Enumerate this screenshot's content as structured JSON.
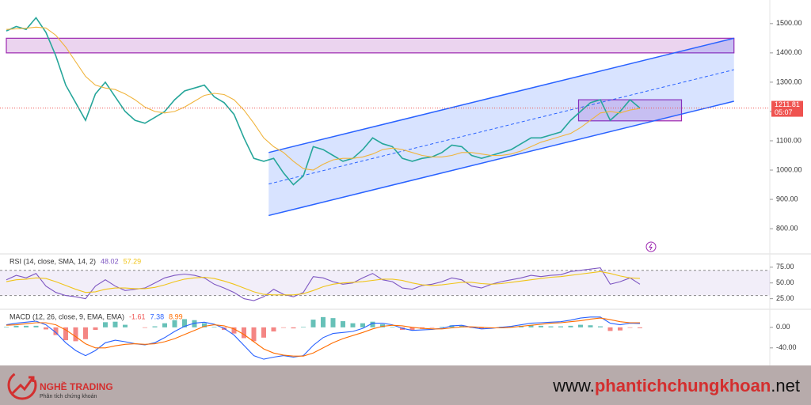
{
  "chart_data": [
    {
      "type": "line",
      "ylim": [
        722,
        1567
      ],
      "yticks": [
        {
          "value": 800,
          "label": "800.00"
        },
        {
          "value": 900,
          "label": "900.00"
        },
        {
          "value": 1000,
          "label": "1000.00"
        },
        {
          "value": 1100,
          "label": "1100.00"
        },
        {
          "value": 1200,
          "label": "1200.00"
        },
        {
          "value": 1300,
          "label": "1300.00"
        },
        {
          "value": 1400,
          "label": "1400.00"
        },
        {
          "value": 1500,
          "label": "1500.00"
        }
      ],
      "series": [
        {
          "color": "#26a69a",
          "values": [
            1475,
            1490,
            1480,
            1520,
            1470,
            1390,
            1290,
            1230,
            1170,
            1260,
            1300,
            1250,
            1200,
            1170,
            1160,
            1180,
            1200,
            1240,
            1270,
            1280,
            1290,
            1250,
            1230,
            1190,
            1110,
            1040,
            1030,
            1040,
            990,
            950,
            980,
            1080,
            1070,
            1050,
            1030,
            1040,
            1070,
            1110,
            1090,
            1080,
            1040,
            1030,
            1040,
            1045,
            1060,
            1085,
            1080,
            1050,
            1040,
            1050,
            1060,
            1070,
            1090,
            1110,
            1110,
            1120,
            1130,
            1170,
            1200,
            1230,
            1240,
            1170,
            1200,
            1240,
            1211.81
          ]
        },
        {
          "color": "#f0b43c",
          "values": [
            1480,
            1482,
            1484,
            1488,
            1485,
            1460,
            1420,
            1370,
            1320,
            1290,
            1280,
            1275,
            1260,
            1240,
            1215,
            1200,
            1195,
            1200,
            1215,
            1235,
            1255,
            1262,
            1258,
            1240,
            1205,
            1160,
            1110,
            1080,
            1060,
            1030,
            1005,
            1000,
            1020,
            1035,
            1040,
            1040,
            1045,
            1055,
            1070,
            1075,
            1070,
            1060,
            1050,
            1045,
            1045,
            1050,
            1060,
            1060,
            1055,
            1050,
            1050,
            1055,
            1065,
            1080,
            1095,
            1105,
            1115,
            1125,
            1145,
            1170,
            1195,
            1200,
            1195,
            1205,
            1210
          ]
        }
      ],
      "countdown": "05:07",
      "channel": {
        "x": [
          26.5,
          73.5
        ],
        "lower": [
          845,
          1235
        ],
        "upper": [
          1060,
          1450
        ]
      },
      "zones": [
        {
          "x": [
            0,
            73.5
          ],
          "y": [
            1400,
            1450
          ]
        },
        {
          "x": [
            57.8,
            68.2
          ],
          "y": [
            1168,
            1240
          ]
        }
      ]
    },
    {
      "type": "line",
      "title": "RSI (14, close, SMA, 14, 2)",
      "ylim": [
        12,
        91
      ],
      "band": [
        30,
        70
      ],
      "yticks": [
        {
          "value": 25,
          "label": "25.00"
        },
        {
          "value": 50,
          "label": "50.00"
        },
        {
          "value": 75,
          "label": "75.00"
        }
      ],
      "series": [
        {
          "color": "#7e57c2",
          "values": [
            55,
            62,
            58,
            65,
            45,
            35,
            30,
            28,
            25,
            45,
            55,
            45,
            38,
            40,
            42,
            50,
            58,
            62,
            64,
            62,
            58,
            48,
            42,
            35,
            25,
            22,
            28,
            40,
            32,
            28,
            35,
            60,
            58,
            52,
            48,
            50,
            58,
            65,
            55,
            52,
            42,
            40,
            46,
            48,
            52,
            58,
            55,
            45,
            42,
            48,
            52,
            55,
            58,
            62,
            60,
            62,
            63,
            68,
            70,
            72,
            74,
            48,
            52,
            58,
            48.02
          ]
        },
        {
          "color": "#f0c419",
          "values": [
            52,
            55,
            56,
            58,
            57,
            52,
            46,
            40,
            35,
            36,
            40,
            42,
            42,
            41,
            41,
            43,
            47,
            52,
            56,
            58,
            59,
            57,
            53,
            48,
            42,
            36,
            32,
            31,
            31,
            31,
            33,
            38,
            44,
            48,
            50,
            51,
            52,
            54,
            56,
            56,
            54,
            50,
            47,
            46,
            47,
            49,
            51,
            51,
            49,
            48,
            49,
            51,
            53,
            55,
            57,
            59,
            60,
            62,
            64,
            66,
            68,
            65,
            61,
            58,
            57.29
          ]
        }
      ]
    },
    {
      "type": "macd",
      "title": "MACD (12, 26, close, 9, EMA, EMA)",
      "ylim": [
        -68,
        29
      ],
      "yticks": [
        {
          "value": -40,
          "label": "-40.00"
        },
        {
          "value": 0,
          "label": "0.00"
        }
      ],
      "histogram": {
        "up_color": "#26a69a",
        "down_color": "#ef5350",
        "values": [
          1,
          3,
          3,
          3,
          -4,
          -15,
          -25,
          -27,
          -23,
          -5,
          10,
          11,
          5,
          0,
          -1,
          2,
          8,
          14,
          16,
          14,
          8,
          1,
          -5,
          -12,
          -21,
          -27,
          -20,
          -8,
          -1,
          -2,
          1,
          15,
          20,
          18,
          12,
          8,
          8,
          11,
          6,
          1,
          -5,
          -6,
          -3,
          -1,
          1,
          4,
          3,
          -1,
          -3,
          -1,
          1,
          2,
          3,
          4,
          3,
          2,
          2,
          3,
          5,
          4,
          2,
          -7,
          -6,
          -1,
          -1.61
        ]
      },
      "series": [
        {
          "color": "#2962ff",
          "values": [
            5,
            8,
            10,
            12,
            5,
            -10,
            -30,
            -45,
            -55,
            -45,
            -30,
            -25,
            -28,
            -32,
            -34,
            -30,
            -20,
            -8,
            2,
            8,
            10,
            6,
            -2,
            -15,
            -35,
            -55,
            -62,
            -58,
            -55,
            -58,
            -55,
            -35,
            -20,
            -12,
            -10,
            -8,
            -2,
            8,
            8,
            5,
            -2,
            -6,
            -5,
            -4,
            -2,
            3,
            4,
            0,
            -3,
            -2,
            0,
            2,
            5,
            8,
            9,
            10,
            11,
            14,
            18,
            20,
            20,
            8,
            5,
            8,
            7.38
          ]
        },
        {
          "color": "#ff6d00",
          "values": [
            4,
            5,
            7,
            9,
            9,
            5,
            -5,
            -18,
            -32,
            -40,
            -40,
            -36,
            -33,
            -32,
            -33,
            -32,
            -28,
            -22,
            -14,
            -6,
            2,
            5,
            3,
            -3,
            -14,
            -28,
            -42,
            -50,
            -54,
            -56,
            -56,
            -50,
            -40,
            -30,
            -22,
            -16,
            -10,
            -3,
            2,
            4,
            3,
            0,
            -2,
            -3,
            -3,
            -1,
            1,
            1,
            0,
            -1,
            -1,
            0,
            2,
            4,
            6,
            8,
            9,
            11,
            13,
            16,
            18,
            15,
            11,
            9,
            8.99
          ]
        }
      ]
    }
  ],
  "footer": {
    "brand": "NGHỀ TRADING",
    "tagline": "Phân tích chứng khoán",
    "site_prefix": "www.",
    "site_name": "phantichchungkhoan",
    "site_suffix": ".net"
  }
}
